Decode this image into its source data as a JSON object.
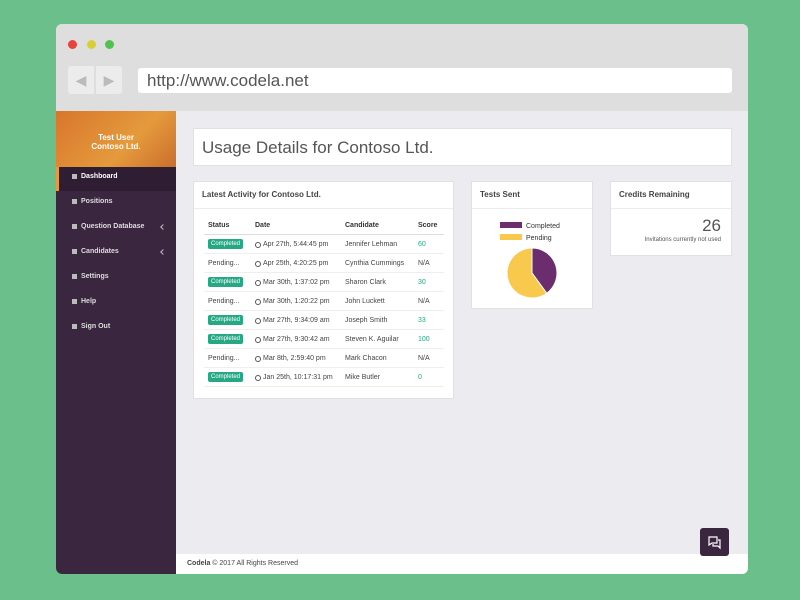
{
  "browser": {
    "url": "http://www.codela.net"
  },
  "sidebar": {
    "user": "Test User",
    "company": "Contoso Ltd.",
    "menu": [
      "Dashboard",
      "Positions",
      "Question Database",
      "Candidates",
      "Settings",
      "Help",
      "Sign Out"
    ]
  },
  "page_title": "Usage Details for Contoso Ltd.",
  "activity": {
    "title": "Latest Activity for Contoso Ltd.",
    "columns": [
      "Status",
      "Date",
      "Candidate",
      "Score"
    ],
    "rows": [
      [
        "Completed",
        "Apr 27th, 5:44:45 pm",
        "Jennifer Lehman",
        60
      ],
      [
        "Pending...",
        "Apr 25th, 4:20:25 pm",
        "Cynthia Cummings",
        "N/A"
      ],
      [
        "Completed",
        "Mar 30th, 1:37:02 pm",
        "Sharon Clark",
        30
      ],
      [
        "Pending...",
        "Mar 30th, 1:20:22 pm",
        "John Luckett",
        "N/A"
      ],
      [
        "Completed",
        "Mar 27th, 9:34:09 am",
        "Joseph Smith",
        33
      ],
      [
        "Completed",
        "Mar 27th, 9:30:42 am",
        "Steven K. Aguilar",
        100
      ],
      [
        "Pending...",
        "Mar 8th, 2:59:40 pm",
        "Mark Chacon",
        "N/A"
      ],
      [
        "Completed",
        "Jan 25th, 10:17:31 pm",
        "Mike Butler",
        0
      ]
    ]
  },
  "chart_data": {
    "type": "pie",
    "title": "Tests Sent",
    "categories": [
      "Completed",
      "Pending"
    ],
    "values": [
      40,
      60
    ],
    "colors": [
      "#6b2d6e",
      "#f8c94c"
    ]
  },
  "credits": {
    "title": "Credits Remaining",
    "value": 26,
    "caption": "Invitations currently not used"
  },
  "footer": {
    "brand": "Codela",
    "text": "© 2017 All Rights Reserved"
  }
}
